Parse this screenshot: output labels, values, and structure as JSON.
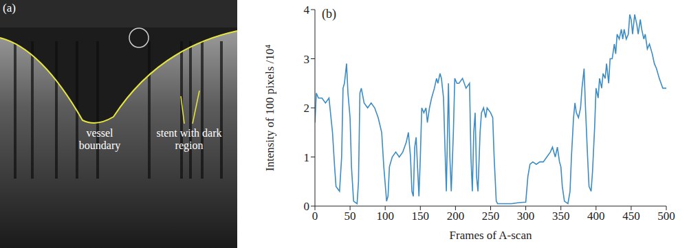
{
  "chart_data": {
    "type": "line",
    "panel_label": "(b)",
    "x_label": "Frames of A-scan",
    "y_label": "Intensity of 100 pixels /10⁴",
    "color": "#3b8cc4",
    "grid": false,
    "xlim": [
      0,
      500
    ],
    "xticks": [
      0,
      50,
      100,
      150,
      200,
      250,
      300,
      350,
      400,
      450,
      500
    ],
    "ylim": [
      0,
      4
    ],
    "yticks": [
      0,
      1,
      2,
      3,
      4
    ],
    "x": [
      0,
      2,
      5,
      10,
      15,
      20,
      25,
      28,
      30,
      35,
      38,
      40,
      42,
      45,
      47,
      50,
      52,
      55,
      60,
      62,
      64,
      66,
      70,
      75,
      80,
      85,
      90,
      95,
      98,
      102,
      104,
      106,
      110,
      115,
      120,
      125,
      130,
      133,
      136,
      138,
      140,
      142,
      144,
      146,
      148,
      150,
      152,
      155,
      158,
      160,
      163,
      166,
      170,
      173,
      175,
      178,
      180,
      183,
      185,
      187,
      190,
      192,
      194,
      197,
      199,
      202,
      205,
      210,
      215,
      220,
      222,
      224,
      226,
      228,
      230,
      232,
      235,
      237,
      240,
      243,
      245,
      250,
      253,
      255,
      258,
      260,
      270,
      280,
      290,
      300,
      303,
      306,
      310,
      315,
      320,
      325,
      330,
      335,
      338,
      342,
      345,
      348,
      350,
      352,
      355,
      360,
      363,
      365,
      368,
      370,
      372,
      375,
      378,
      380,
      383,
      385,
      388,
      390,
      393,
      395,
      398,
      400,
      403,
      405,
      408,
      410,
      413,
      415,
      418,
      420,
      423,
      426,
      428,
      430,
      433,
      436,
      438,
      440,
      443,
      446,
      448,
      450,
      452,
      455,
      458,
      460,
      463,
      465,
      468,
      470,
      473,
      476,
      480,
      483,
      486,
      490,
      495,
      500
    ],
    "values": [
      1.7,
      2.3,
      2.2,
      2.2,
      2.1,
      2.2,
      1.5,
      0.8,
      0.4,
      0.3,
      1.0,
      2.4,
      2.5,
      2.9,
      2.3,
      1.8,
      0.8,
      0.1,
      0.05,
      0.5,
      2.3,
      2.4,
      2.1,
      2.0,
      2.1,
      2.0,
      1.8,
      1.5,
      0.8,
      0.1,
      0.2,
      0.8,
      1.0,
      1.1,
      1.0,
      1.1,
      1.3,
      1.5,
      1.0,
      0.3,
      0.2,
      1.2,
      1.4,
      0.8,
      0.2,
      1.0,
      2.0,
      1.9,
      2.0,
      1.7,
      2.0,
      2.2,
      2.4,
      2.6,
      2.5,
      2.7,
      2.6,
      2.2,
      1.2,
      0.3,
      2.5,
      1.0,
      0.3,
      1.5,
      2.6,
      2.5,
      2.5,
      2.6,
      2.4,
      2.5,
      1.0,
      0.3,
      1.5,
      1.9,
      0.6,
      0.3,
      1.5,
      1.9,
      2.0,
      1.8,
      2.0,
      1.9,
      1.8,
      1.0,
      0.1,
      0.05,
      0.05,
      0.05,
      0.07,
      0.08,
      0.6,
      0.85,
      0.9,
      0.85,
      0.9,
      0.9,
      1.0,
      1.1,
      1.2,
      1.0,
      1.2,
      0.9,
      0.8,
      0.4,
      0.1,
      0.05,
      0.3,
      1.0,
      1.8,
      2.1,
      1.9,
      1.8,
      2.0,
      2.4,
      2.8,
      2.0,
      1.0,
      0.4,
      0.3,
      0.7,
      1.6,
      2.4,
      2.2,
      2.6,
      2.4,
      2.7,
      2.6,
      2.9,
      2.5,
      3.0,
      3.0,
      3.3,
      3.1,
      3.5,
      3.4,
      3.6,
      3.4,
      3.6,
      3.4,
      3.5,
      3.9,
      3.8,
      3.5,
      3.9,
      3.7,
      3.5,
      3.8,
      3.6,
      3.4,
      3.5,
      3.2,
      3.3,
      3.1,
      2.9,
      2.8,
      2.6,
      2.4,
      2.4
    ]
  },
  "image_panel": {
    "label": "(a)",
    "annotations": [
      "vessel boundary",
      "stent with dark region"
    ]
  }
}
